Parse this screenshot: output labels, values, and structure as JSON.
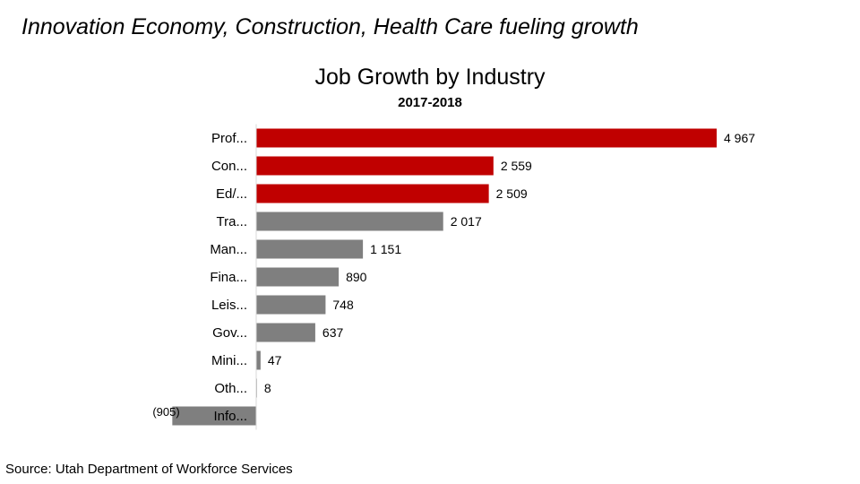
{
  "slide": {
    "title": "Innovation Economy, Construction, Health Care fueling growth",
    "source": "Source:  Utah Department of Workforce Services"
  },
  "colors": {
    "highlight": "#c00000",
    "default": "#7f7f7f",
    "axis": "#d9d9d9",
    "text": "#000000"
  },
  "chart_data": {
    "type": "bar",
    "orientation": "horizontal",
    "title": "Job Growth by Industry",
    "subtitle": "2017-2018",
    "xlabel": "",
    "ylabel": "",
    "grid": false,
    "xlim": [
      -905,
      4967
    ],
    "categories": [
      "Prof...",
      "Con...",
      "Ed/...",
      "Tra...",
      "Man...",
      "Fina...",
      "Leis...",
      "Gov...",
      "Mini...",
      "Oth...",
      "Info..."
    ],
    "values": [
      4967,
      2559,
      2509,
      2017,
      1151,
      890,
      748,
      637,
      47,
      8,
      -905
    ],
    "value_labels": [
      "4 967",
      "2 559",
      "2 509",
      "2 017",
      "1 151",
      "890",
      "748",
      "637",
      "47",
      "8",
      "(905)"
    ],
    "highlighted": [
      true,
      true,
      true,
      false,
      false,
      false,
      false,
      false,
      false,
      false,
      false
    ]
  }
}
